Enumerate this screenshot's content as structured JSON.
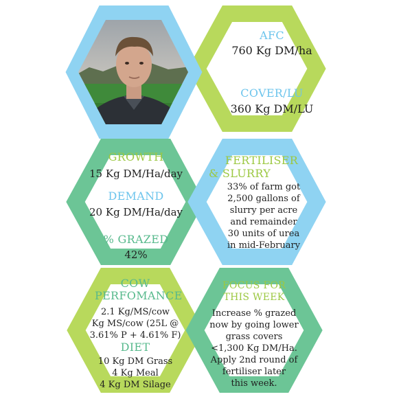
{
  "colors": {
    "blue": "#8fd3f2",
    "lime": "#b8d95c",
    "green": "#6cc596",
    "heading_blue": "#6cc4ec",
    "heading_lime": "#9cc842",
    "heading_green": "#57b98c"
  },
  "photo": {
    "icon": "person-photo"
  },
  "afc": {
    "label": "AFC",
    "value": "760 Kg DM/ha"
  },
  "cover": {
    "label": "COVER/LU",
    "value": "360 Kg DM/LU"
  },
  "growth": {
    "label": "GROWTH",
    "value": "15 Kg DM/Ha/day"
  },
  "demand": {
    "label": "DEMAND",
    "value": "20 Kg DM/Ha/day"
  },
  "grazed": {
    "label": "% GRAZED",
    "value": "42%"
  },
  "fertiliser": {
    "label_lines": [
      "FERTILISER",
      "& SLURRY"
    ],
    "text_lines": [
      "33% of farm got",
      "2,500 gallons of",
      "slurry per acre",
      "and remainder",
      "30 units of urea",
      "in mid-February"
    ]
  },
  "cow": {
    "label_lines": [
      "COW",
      "PERFOMANCE"
    ],
    "text_lines": [
      "2.1 Kg/MS/cow",
      "Kg MS/cow (25L @",
      "3.61% P + 4.61% F)"
    ]
  },
  "diet": {
    "label": "DIET",
    "text_lines": [
      "10 Kg DM Grass",
      "4 Kg Meal",
      "4 Kg DM Silage"
    ]
  },
  "focus": {
    "label_lines": [
      "FOCUS FOR",
      "THIS WEEK"
    ],
    "text_lines": [
      "Increase % grazed",
      "now by going lower",
      "grass covers",
      "<1,300 Kg DM/Ha.",
      "Apply 2nd round of",
      "fertiliser later",
      "this week."
    ]
  }
}
